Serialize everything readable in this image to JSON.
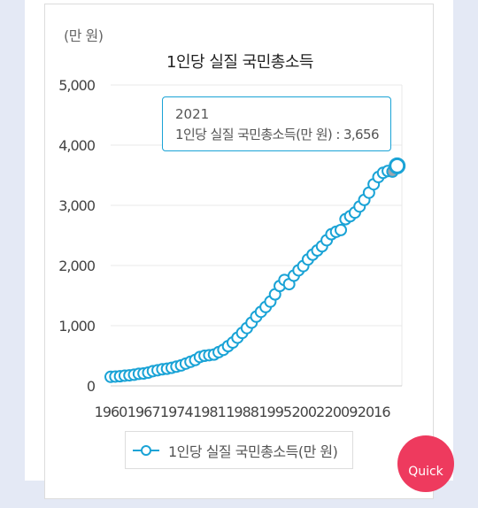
{
  "unit_label": "(만 원)",
  "tooltip": {
    "year": "2021",
    "text": "1인당 실질 국민총소득(만 원) : 3,656"
  },
  "legend": {
    "label": "1인당 실질 국민총소득(만 원)"
  },
  "quick_button": {
    "label": "Quick"
  },
  "colors": {
    "series": "#1aa3d6",
    "highlight": "#9aa5b1",
    "grid": "#e8e8e8"
  },
  "chart_data": {
    "type": "line",
    "title": "1인당 실질 국민총소득",
    "xlabel": "",
    "ylabel": "",
    "ylim": [
      0,
      5000
    ],
    "yticks": [
      0,
      1000,
      2000,
      3000,
      4000,
      5000
    ],
    "ytick_labels": [
      "0",
      "1,000",
      "2,000",
      "3,000",
      "4,000",
      "5,000"
    ],
    "xlim": [
      1960,
      2022
    ],
    "xticks": [
      1960,
      1967,
      1974,
      1981,
      1988,
      1995,
      2002,
      2009,
      2016
    ],
    "xtick_labels": [
      "1960",
      "1967",
      "1974",
      "1981",
      "1988",
      "1995",
      "2002",
      "2009",
      "2016"
    ],
    "highlighted_x": 2020,
    "series": [
      {
        "name": "1인당 실질 국민총소득(만 원)",
        "x": [
          1960,
          1961,
          1962,
          1963,
          1964,
          1965,
          1966,
          1967,
          1968,
          1969,
          1970,
          1971,
          1972,
          1973,
          1974,
          1975,
          1976,
          1977,
          1978,
          1979,
          1980,
          1981,
          1982,
          1983,
          1984,
          1985,
          1986,
          1987,
          1988,
          1989,
          1990,
          1991,
          1992,
          1993,
          1994,
          1995,
          1996,
          1997,
          1998,
          1999,
          2000,
          2001,
          2002,
          2003,
          2004,
          2005,
          2006,
          2007,
          2008,
          2009,
          2010,
          2011,
          2012,
          2013,
          2014,
          2015,
          2016,
          2017,
          2018,
          2019,
          2020,
          2021
        ],
        "values": [
          150,
          155,
          160,
          170,
          175,
          185,
          200,
          205,
          220,
          245,
          260,
          275,
          285,
          300,
          320,
          340,
          370,
          400,
          430,
          480,
          500,
          510,
          520,
          560,
          600,
          660,
          720,
          800,
          880,
          960,
          1050,
          1150,
          1230,
          1310,
          1400,
          1520,
          1660,
          1760,
          1690,
          1830,
          1920,
          1990,
          2100,
          2180,
          2250,
          2320,
          2420,
          2520,
          2560,
          2590,
          2770,
          2820,
          2880,
          2980,
          3090,
          3210,
          3350,
          3470,
          3540,
          3570,
          3560,
          3656
        ]
      }
    ]
  }
}
